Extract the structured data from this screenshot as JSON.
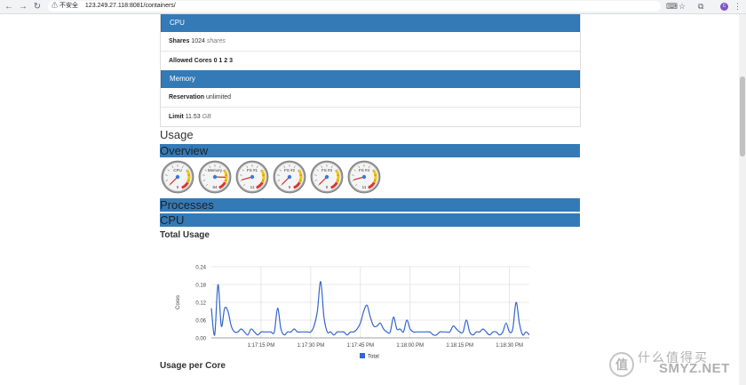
{
  "browser": {
    "security_label": "不安全",
    "url": "123.249.27.118:8081/containers/",
    "avatar_letter": "c"
  },
  "cpu_panel": {
    "title": "CPU",
    "shares_label": "Shares",
    "shares_value": "1024",
    "shares_unit": "shares",
    "allowed_cores_label": "Allowed Cores",
    "allowed_cores_value": "0 1 2 3"
  },
  "memory_panel": {
    "title": "Memory",
    "reservation_label": "Reservation",
    "reservation_value": "unlimited",
    "limit_label": "Limit",
    "limit_value": "11.53",
    "limit_unit": "GB"
  },
  "usage": {
    "heading": "Usage",
    "overview_title": "Overview",
    "processes_title": "Processes",
    "cpu_title": "CPU",
    "total_usage_heading": "Total Usage",
    "per_core_heading": "Usage per Core"
  },
  "gauges": [
    {
      "label": "CPU",
      "value": 0,
      "reading": "0"
    },
    {
      "label": "Memory",
      "value": 84,
      "reading": "84"
    },
    {
      "label": "FS #1",
      "value": 11,
      "reading": "11"
    },
    {
      "label": "FS #2",
      "value": 0,
      "reading": "0"
    },
    {
      "label": "FS #3",
      "value": 0,
      "reading": "0"
    },
    {
      "label": "FS #4",
      "value": 11,
      "reading": "11"
    }
  ],
  "chart_data": {
    "type": "line",
    "ylabel": "Cores",
    "xlabel": "",
    "ylim": [
      0,
      0.24
    ],
    "yticks": [
      "0.00",
      "0.06",
      "0.12",
      "0.18",
      "0.24"
    ],
    "xticks": [
      "1:17:15 PM",
      "1:17:30 PM",
      "1:17:45 PM",
      "1:18:00 PM",
      "1:18:15 PM",
      "1:18:30 PM"
    ],
    "legend": "bottom",
    "series": [
      {
        "name": "Total",
        "color": "#3366cc",
        "x_seconds_from_1_17_00": [
          0,
          1,
          2,
          3,
          4,
          5,
          6,
          7,
          8,
          9,
          10,
          11,
          12,
          13,
          14,
          15,
          16,
          17,
          18,
          19,
          20,
          21,
          22,
          23,
          24,
          25,
          26,
          27,
          28,
          29,
          30,
          31,
          32,
          33,
          34,
          35,
          36,
          37,
          38,
          39,
          40,
          41,
          42,
          43,
          44,
          45,
          46,
          47,
          48,
          49,
          50,
          51,
          52,
          53,
          54,
          55,
          56,
          57,
          58,
          59,
          60,
          61,
          62,
          63,
          64,
          65,
          66,
          67,
          68,
          69,
          70,
          71,
          72,
          73,
          74,
          75,
          76,
          77,
          78,
          79,
          80,
          81,
          82,
          83,
          84,
          85,
          86,
          87,
          88,
          89,
          90,
          91,
          92,
          93,
          94,
          95,
          96
        ],
        "values": [
          0.1,
          0.01,
          0.18,
          0.04,
          0.1,
          0.09,
          0.04,
          0.02,
          0.02,
          0.03,
          0.02,
          0.01,
          0.03,
          0.02,
          0.01,
          0.02,
          0.02,
          0.02,
          0.02,
          0.02,
          0.1,
          0.03,
          0.01,
          0.02,
          0.02,
          0.03,
          0.02,
          0.02,
          0.02,
          0.02,
          0.02,
          0.04,
          0.09,
          0.19,
          0.07,
          0.02,
          0.02,
          0.01,
          0.02,
          0.02,
          0.02,
          0.01,
          0.02,
          0.02,
          0.03,
          0.05,
          0.09,
          0.11,
          0.07,
          0.04,
          0.04,
          0.05,
          0.03,
          0.02,
          0.02,
          0.07,
          0.03,
          0.03,
          0.02,
          0.06,
          0.03,
          0.02,
          0.02,
          0.02,
          0.02,
          0.02,
          0.02,
          0.01,
          0.01,
          0.02,
          0.02,
          0.02,
          0.02,
          0.04,
          0.03,
          0.02,
          0.02,
          0.06,
          0.02,
          0.01,
          0.02,
          0.02,
          0.03,
          0.02,
          0.01,
          0.02,
          0.02,
          0.01,
          0.02,
          0.05,
          0.02,
          0.03,
          0.12,
          0.05,
          0.01,
          0.02,
          0.01
        ]
      }
    ]
  }
}
